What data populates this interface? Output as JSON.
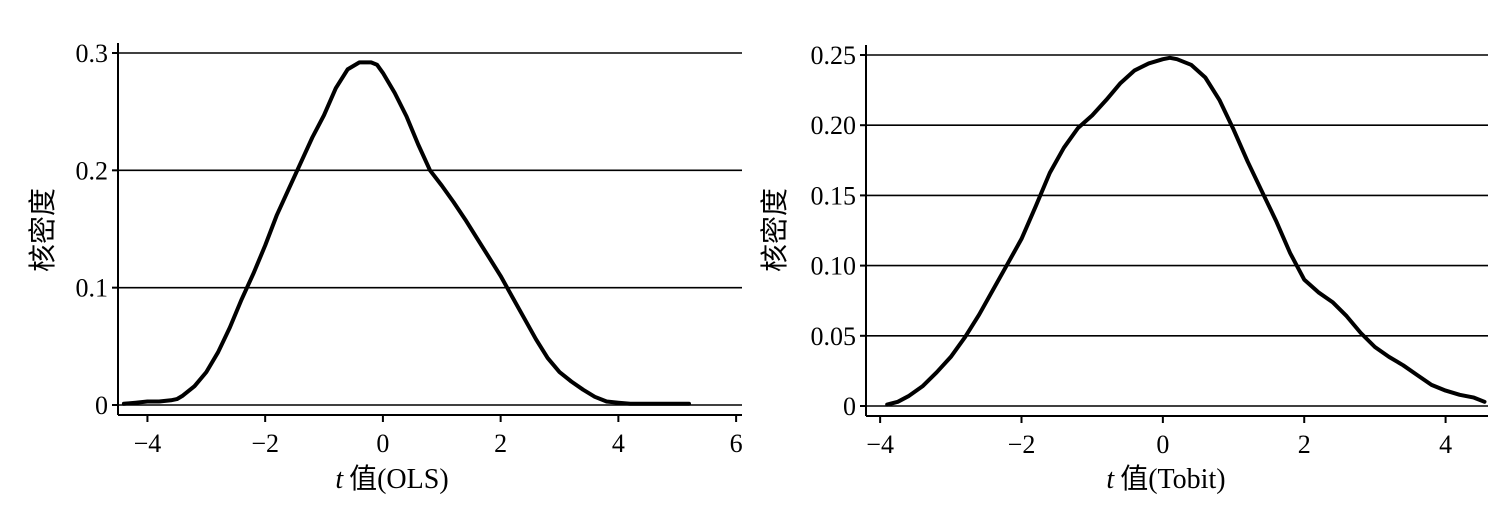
{
  "chart_data": [
    {
      "type": "line",
      "xlabel_italic": "t",
      "xlabel": "值(OLS)",
      "ylabel": "核密度",
      "xlim": [
        -4.5,
        6.1
      ],
      "ylim": [
        0,
        0.3
      ],
      "xticks": [
        -4,
        -2,
        0,
        2,
        4,
        6
      ],
      "xtick_labels": [
        "−4",
        "−2",
        "0",
        "2",
        "4",
        "6"
      ],
      "yticks": [
        0,
        0.1,
        0.2,
        0.3
      ],
      "ytick_labels": [
        "0",
        "0.1",
        "0.2",
        "0.3"
      ],
      "grid": "horizontal",
      "series": [
        {
          "x": [
            -4.4,
            -4.2,
            -4.0,
            -3.8,
            -3.6,
            -3.5,
            -3.4,
            -3.2,
            -3.0,
            -2.8,
            -2.6,
            -2.4,
            -2.2,
            -2.0,
            -1.8,
            -1.6,
            -1.4,
            -1.2,
            -1.0,
            -0.8,
            -0.6,
            -0.4,
            -0.3,
            -0.2,
            -0.1,
            0.0,
            0.2,
            0.4,
            0.6,
            0.8,
            1.0,
            1.2,
            1.4,
            1.6,
            1.8,
            2.0,
            2.2,
            2.4,
            2.6,
            2.8,
            3.0,
            3.2,
            3.4,
            3.6,
            3.8,
            4.0,
            4.2,
            4.5,
            4.8,
            5.2
          ],
          "y": [
            0.001,
            0.002,
            0.003,
            0.003,
            0.004,
            0.005,
            0.008,
            0.016,
            0.028,
            0.045,
            0.066,
            0.09,
            0.112,
            0.136,
            0.162,
            0.184,
            0.206,
            0.228,
            0.247,
            0.27,
            0.286,
            0.292,
            0.292,
            0.292,
            0.29,
            0.283,
            0.266,
            0.246,
            0.222,
            0.2,
            0.187,
            0.173,
            0.158,
            0.142,
            0.126,
            0.11,
            0.092,
            0.074,
            0.056,
            0.04,
            0.028,
            0.02,
            0.013,
            0.007,
            0.003,
            0.002,
            0.001,
            0.001,
            0.001,
            0.001
          ]
        }
      ]
    },
    {
      "type": "line",
      "xlabel_italic": "t",
      "xlabel": "值(Tobit)",
      "ylabel": "核密度",
      "xlim": [
        -4.2,
        4.6
      ],
      "ylim": [
        0,
        0.25
      ],
      "xticks": [
        -4,
        -2,
        0,
        2,
        4
      ],
      "xtick_labels": [
        "−4",
        "−2",
        "0",
        "2",
        "4"
      ],
      "yticks": [
        0,
        0.05,
        0.1,
        0.15,
        0.2,
        0.25
      ],
      "ytick_labels": [
        "0",
        "0.05",
        "0.10",
        "0.15",
        "0.20",
        "0.25"
      ],
      "grid": "horizontal",
      "series": [
        {
          "x": [
            -3.9,
            -3.75,
            -3.6,
            -3.4,
            -3.2,
            -3.0,
            -2.8,
            -2.6,
            -2.4,
            -2.2,
            -2.0,
            -1.8,
            -1.6,
            -1.4,
            -1.2,
            -1.0,
            -0.8,
            -0.6,
            -0.4,
            -0.2,
            0.0,
            0.1,
            0.2,
            0.4,
            0.6,
            0.8,
            1.0,
            1.2,
            1.4,
            1.6,
            1.8,
            2.0,
            2.2,
            2.4,
            2.6,
            2.8,
            3.0,
            3.2,
            3.4,
            3.6,
            3.8,
            4.0,
            4.2,
            4.4,
            4.55
          ],
          "y": [
            0.001,
            0.003,
            0.007,
            0.014,
            0.024,
            0.035,
            0.049,
            0.065,
            0.083,
            0.101,
            0.119,
            0.142,
            0.166,
            0.184,
            0.198,
            0.207,
            0.218,
            0.23,
            0.239,
            0.244,
            0.247,
            0.248,
            0.247,
            0.243,
            0.234,
            0.218,
            0.197,
            0.174,
            0.153,
            0.132,
            0.109,
            0.09,
            0.081,
            0.074,
            0.064,
            0.052,
            0.042,
            0.035,
            0.029,
            0.022,
            0.015,
            0.011,
            0.008,
            0.006,
            0.003
          ]
        }
      ]
    }
  ]
}
